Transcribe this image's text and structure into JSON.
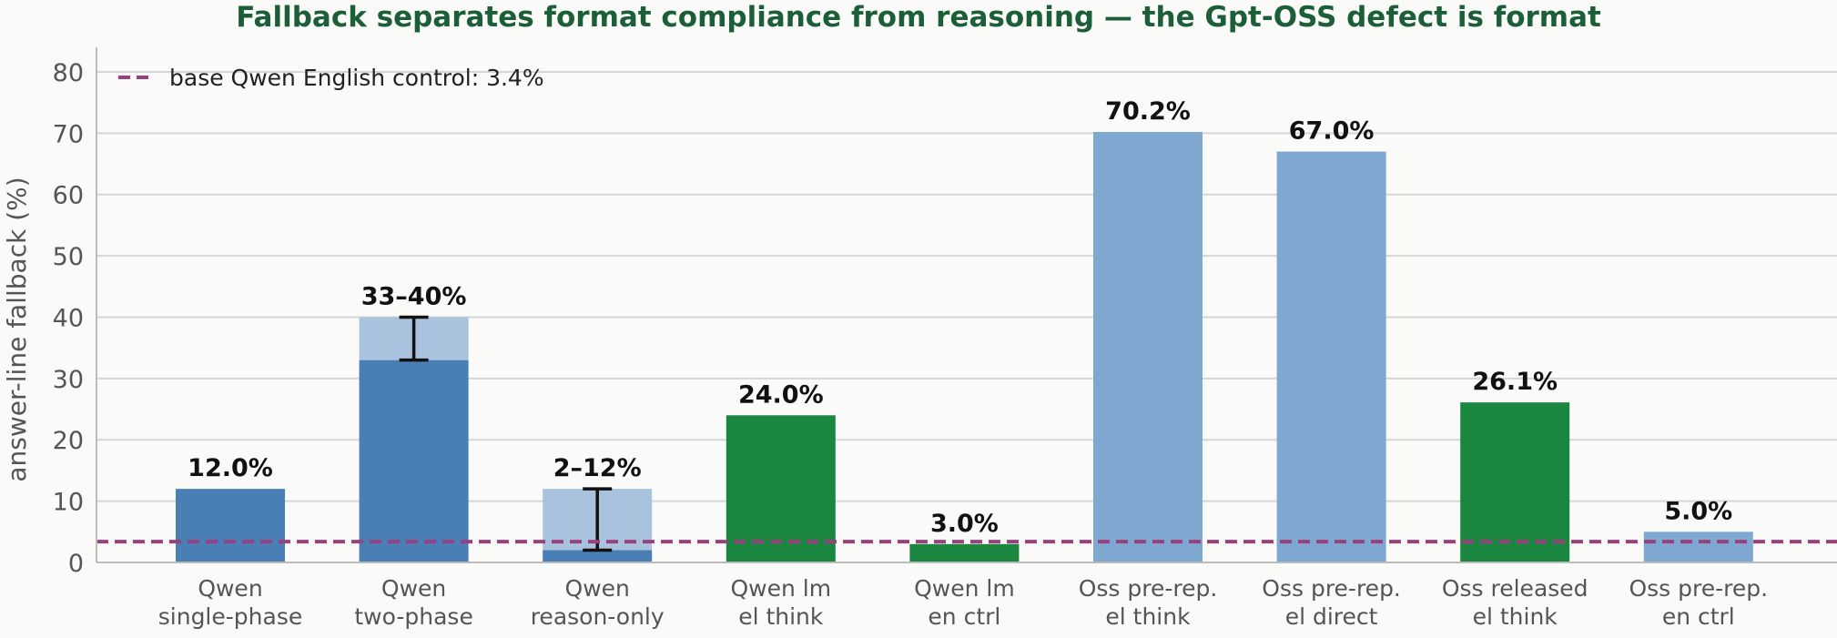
{
  "chart_data": {
    "type": "bar",
    "title": "Fallback separates format compliance from reasoning — the Gpt-OSS defect is format",
    "xlabel": "",
    "ylabel": "answer-line fallback (%)",
    "ylim": [
      0,
      84
    ],
    "yticks": [
      0,
      10,
      20,
      30,
      40,
      50,
      60,
      70,
      80
    ],
    "grid": "horizontal",
    "legend_position": "top-left",
    "categories": [
      [
        "Qwen",
        "single-phase"
      ],
      [
        "Qwen",
        "two-phase"
      ],
      [
        "Qwen",
        "reason-only"
      ],
      [
        "Qwen lm",
        "el think"
      ],
      [
        "Qwen lm",
        "en ctrl"
      ],
      [
        "Oss pre-rep.",
        "el think"
      ],
      [
        "Oss pre-rep.",
        "el direct"
      ],
      [
        "Oss released",
        "el think"
      ],
      [
        "Oss pre-rep.",
        "en ctrl"
      ]
    ],
    "bars": [
      {
        "value": 12.0,
        "label": "12.0%",
        "color": "#4a7fb5"
      },
      {
        "value": 33.0,
        "range": [
          33,
          40
        ],
        "label": "33–40%",
        "color": "#4a7fb5",
        "range_color": "#a9c2de"
      },
      {
        "value": 2.0,
        "range": [
          2,
          12
        ],
        "label": "2–12%",
        "color": "#4a7fb5",
        "range_color": "#a9c2de"
      },
      {
        "value": 24.0,
        "label": "24.0%",
        "color": "#1a8640"
      },
      {
        "value": 3.0,
        "label": "3.0%",
        "color": "#1a8640"
      },
      {
        "value": 70.2,
        "label": "70.2%",
        "color": "#7ea8cf"
      },
      {
        "value": 67.0,
        "label": "67.0%",
        "color": "#7ea8cf"
      },
      {
        "value": 26.1,
        "label": "26.1%",
        "color": "#1a8640"
      },
      {
        "value": 5.0,
        "label": "5.0%",
        "color": "#7ea8cf"
      }
    ],
    "reference_line": {
      "value": 3.4,
      "label": "base Qwen English control: 3.4%",
      "color": "#9b3f7e",
      "style": "dashed"
    },
    "colors": {
      "title": "#1b5e38",
      "grid": "#d6d6d6",
      "axis": "#bbbbbb"
    }
  }
}
